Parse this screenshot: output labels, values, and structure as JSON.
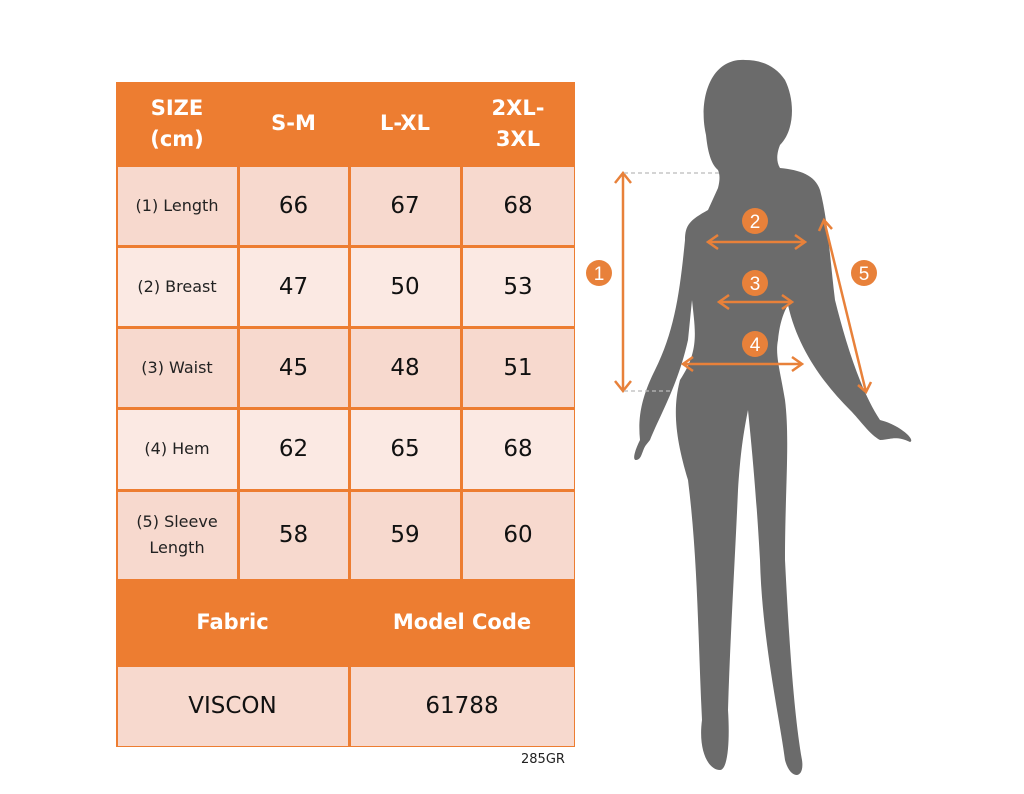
{
  "table": {
    "headers": [
      "SIZE\n(cm)",
      "S-M",
      "L-XL",
      "2XL-\n3XL"
    ],
    "rows": [
      {
        "label": "(1) Length",
        "values": [
          "66",
          "67",
          "68"
        ]
      },
      {
        "label": "(2) Breast",
        "values": [
          "47",
          "50",
          "53"
        ]
      },
      {
        "label": "(3) Waist",
        "values": [
          "45",
          "48",
          "51"
        ]
      },
      {
        "label": "(4) Hem",
        "values": [
          "62",
          "65",
          "68"
        ]
      },
      {
        "label": "(5) Sleeve Length",
        "values": [
          "58",
          "59",
          "60"
        ]
      }
    ],
    "fabric_label": "Fabric",
    "model_code_label": "Model Code",
    "fabric_value": "VISCON",
    "model_code_value": "61788"
  },
  "weight_code": "285GR",
  "figure": {
    "markers": [
      "1",
      "2",
      "3",
      "4",
      "5"
    ]
  },
  "colors": {
    "accent": "#ED7D31",
    "silhouette": "#6b6b6b"
  }
}
